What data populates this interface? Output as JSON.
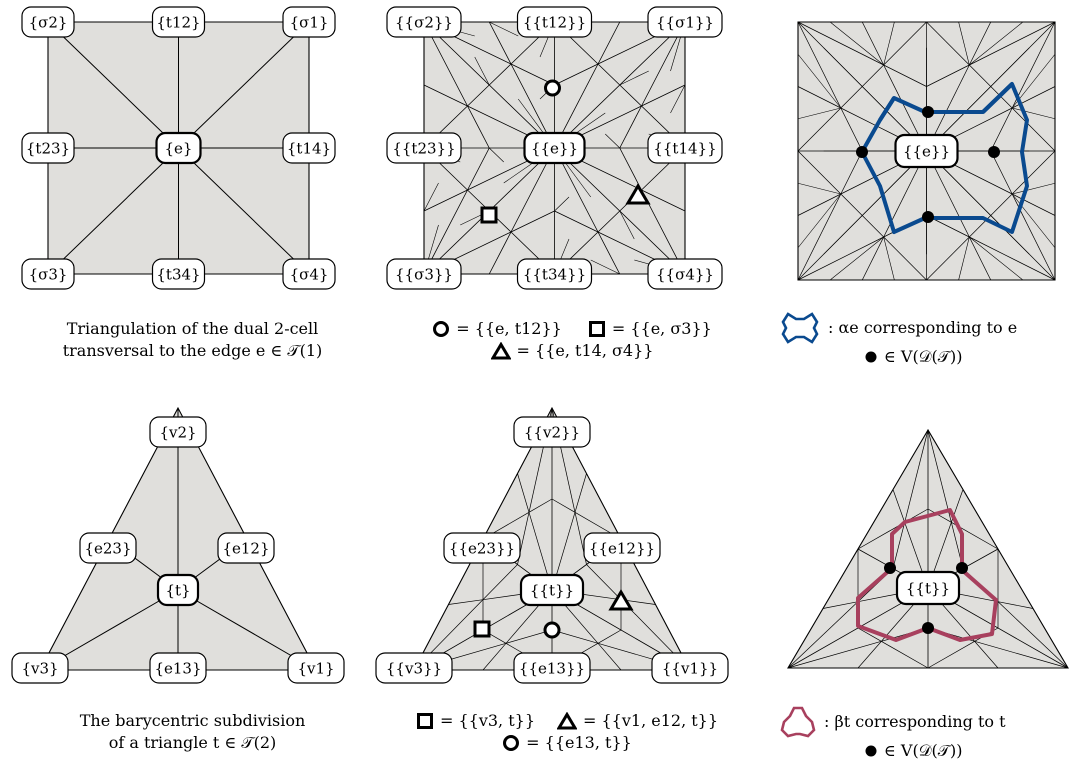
{
  "colors": {
    "fill": "#e0dfdc",
    "edge": "#000000",
    "blue": "#0a4a8f",
    "red": "#a8405e"
  },
  "panels": {
    "square_a": {
      "corners": [
        "{σ2}",
        "{t12}",
        "{σ1}",
        "{t23}",
        "{e}",
        "{t14}",
        "{σ3}",
        "{t34}",
        "{σ4}"
      ]
    },
    "square_b": {
      "corners": [
        "{{σ2}}",
        "{{t12}}",
        "{{σ1}}",
        "{{t23}}",
        "{{e}}",
        "{{t14}}",
        "{{σ3}}",
        "{{t34}}",
        "{{σ4}}"
      ]
    },
    "square_c": {
      "center": "{{e}}"
    },
    "tri_a": {
      "labels": [
        "{v2}",
        "{e23}",
        "{t}",
        "{e12}",
        "{v3}",
        "{e13}",
        "{v1}"
      ]
    },
    "tri_b": {
      "labels": [
        "{{v2}}",
        "{{e23}}",
        "{{t}}",
        "{{e12}}",
        "{{v3}}",
        "{{e13}}",
        "{{v1}}"
      ]
    },
    "tri_c": {
      "center": "{{t}}"
    }
  },
  "captions": {
    "square_a": [
      "Triangulation of the dual 2-cell",
      "transversal to the edge e ∈ 𝒯(1)"
    ],
    "square_b": [
      "= {{e, t12}}",
      "= {{e, σ3}}",
      "= {{e, t14, σ4}}"
    ],
    "square_c": [
      ": αe corresponding to e",
      "∈ V(𝒟(𝒯))"
    ],
    "tri_a": [
      "The barycentric subdivision",
      "of a triangle t ∈ 𝒯(2)"
    ],
    "tri_b": [
      "= {{v3, t}}",
      "= {{v1, e12, t}}",
      "= {{e13, t}}"
    ],
    "tri_c": [
      ": βt corresponding to t",
      "∈ V(𝒟(𝒯))"
    ]
  }
}
